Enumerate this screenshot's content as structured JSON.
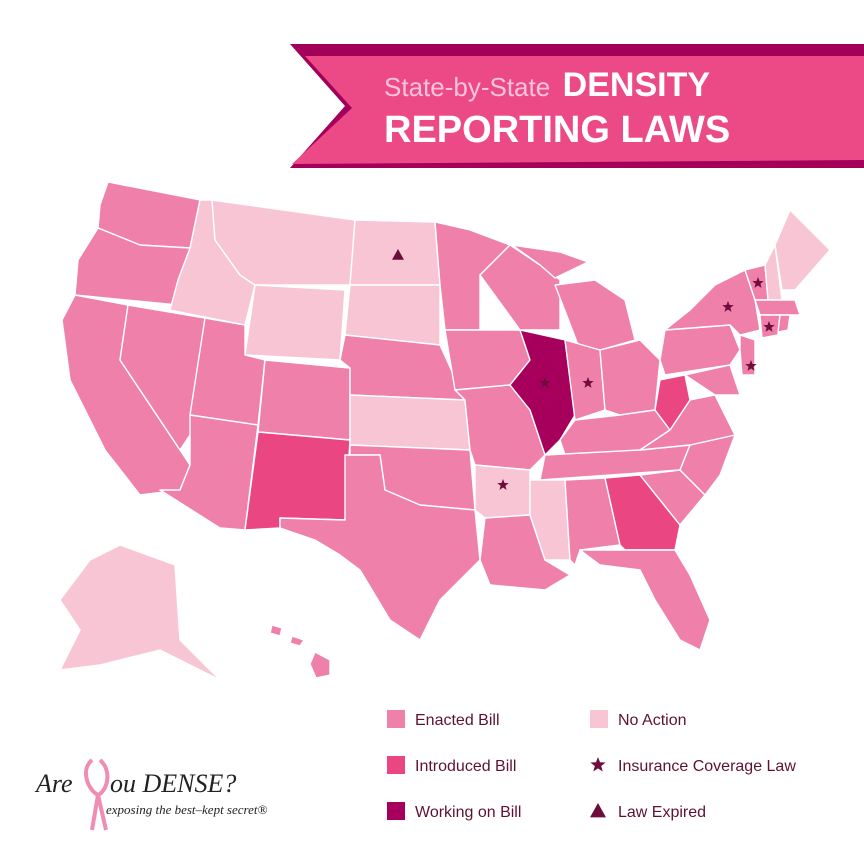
{
  "header": {
    "title_prefix": "State-by-State",
    "title_line_1": "DENSITY",
    "title_line_2": "REPORTING LAWS"
  },
  "legend": [
    {
      "label": "Enacted Bill",
      "color": "#ef80aa"
    },
    {
      "label": "Introduced Bill",
      "color": "#ea4682"
    },
    {
      "label": "Working on Bill",
      "color": "#a6005c"
    },
    {
      "label": "No Action",
      "color": "#f8c5d5"
    },
    {
      "label": "Insurance Coverage Law",
      "symbol": "star",
      "color": "#6e0d3c"
    },
    {
      "label": "Law Expired",
      "symbol": "triangle",
      "color": "#6e0d3c"
    }
  ],
  "logo": {
    "word_1": "Are",
    "word_2": "ou DENSE?",
    "tagline": "exposing the best–kept secret®"
  }
}
